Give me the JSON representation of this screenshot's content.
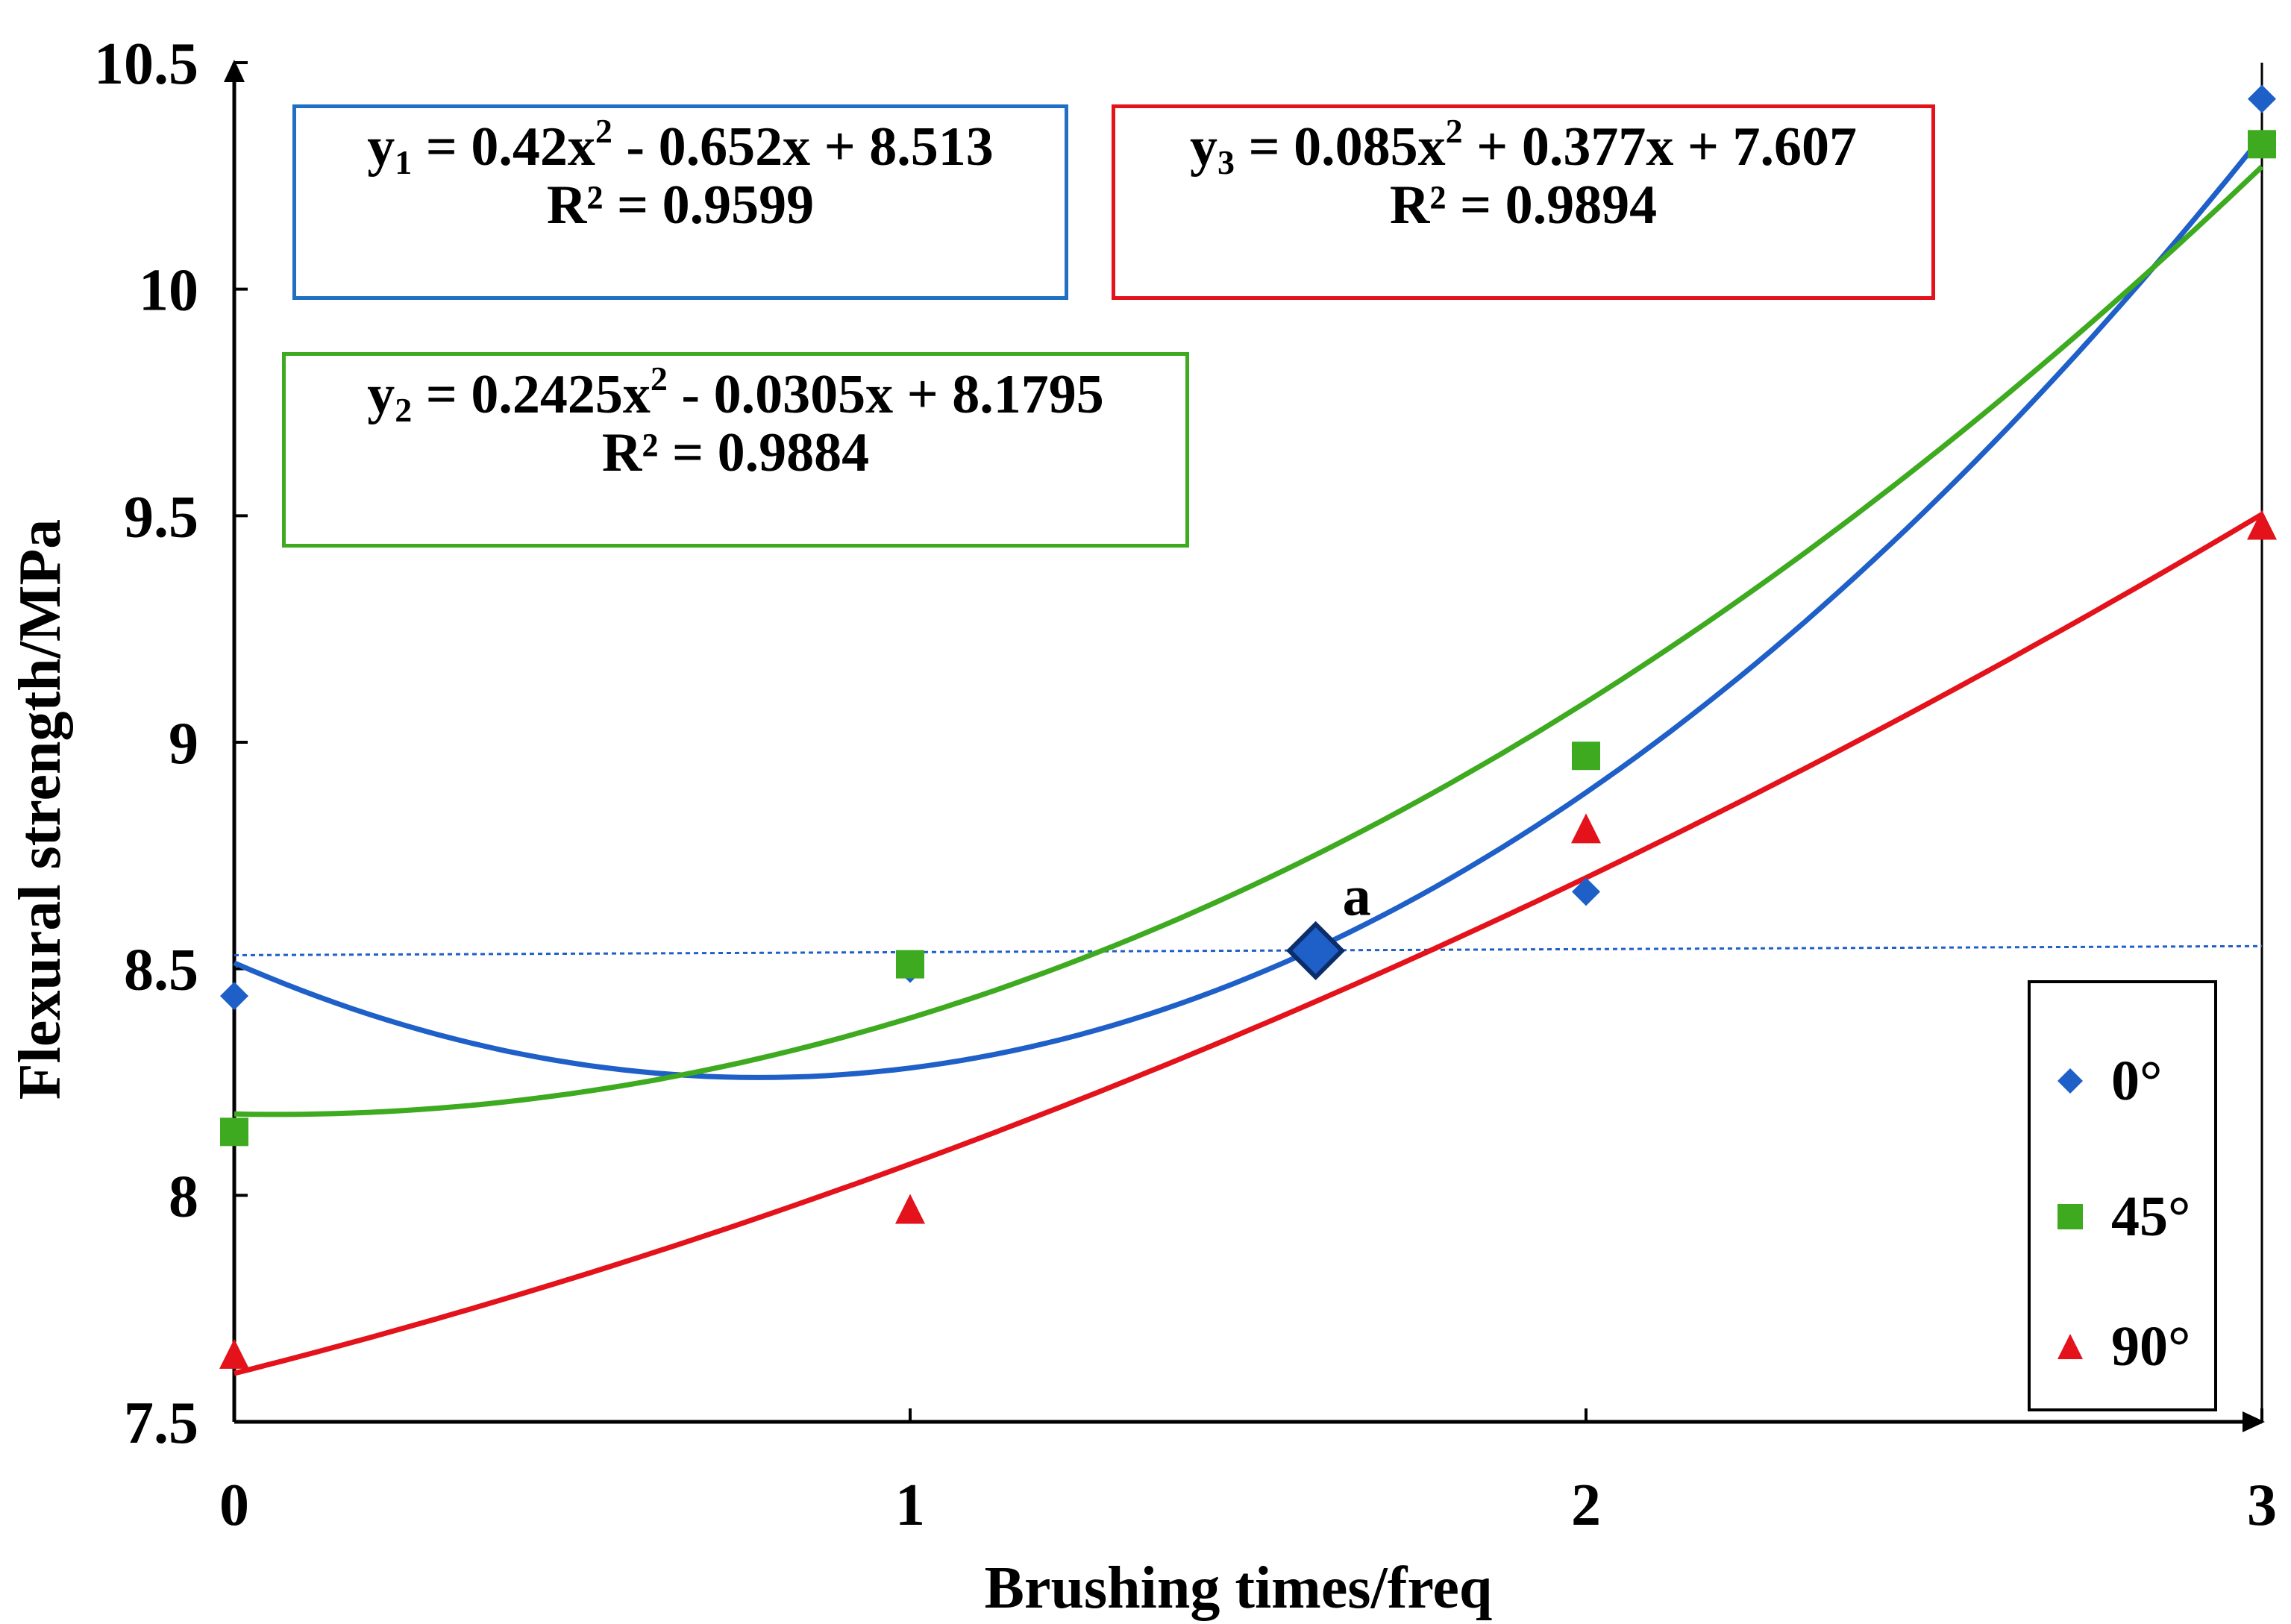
{
  "chart_data": {
    "type": "scatter",
    "xlabel": "Brushing times/freq",
    "ylabel": "Flexural strength/MPa",
    "xlim": [
      0,
      3
    ],
    "ylim": [
      7.5,
      10.5
    ],
    "x_ticks": [
      "0",
      "1",
      "2",
      "3"
    ],
    "y_ticks": [
      "7.5",
      "8",
      "8.5",
      "9",
      "9.5",
      "10",
      "10.5"
    ],
    "series": [
      {
        "name": "0°",
        "color": "#1f5fc8",
        "marker": "diamond",
        "x": [
          0,
          1,
          2,
          3
        ],
        "values": [
          8.44,
          8.5,
          8.67,
          10.42
        ],
        "trend": {
          "a": 0.42,
          "b": -0.652,
          "c": 8.513,
          "equation_prefix": "y",
          "equation_sub": "1",
          "equation_body_a": " = 0.42x",
          "equation_body_b": " - 0.652x + 8.513",
          "r2": "R² = 0.9599"
        }
      },
      {
        "name": "45°",
        "color": "#3daa1f",
        "marker": "square",
        "x": [
          0,
          1,
          2,
          3
        ],
        "values": [
          8.14,
          8.51,
          8.97,
          10.32
        ],
        "trend": {
          "a": 0.2425,
          "b": -0.0305,
          "c": 8.1795,
          "equation_prefix": "y",
          "equation_sub": "2",
          "equation_body_a": " = 0.2425x",
          "equation_body_b": " - 0.0305x + 8.1795",
          "r2": "R² = 0.9884"
        }
      },
      {
        "name": "90°",
        "color": "#e3121b",
        "marker": "triangle",
        "x": [
          0,
          1,
          2,
          3
        ],
        "values": [
          7.65,
          7.97,
          8.81,
          9.48
        ],
        "trend": {
          "a": 0.085,
          "b": 0.377,
          "c": 7.607,
          "equation_prefix": "y",
          "equation_sub": "3",
          "equation_body_a": " = 0.085x",
          "equation_body_b": " + 0.377x + 7.607",
          "r2": "R² = 0.9894"
        }
      }
    ],
    "reference_line": {
      "y_start": 8.53,
      "y_end": 8.55,
      "color": "#1f5fc8",
      "style": "dotted"
    },
    "highlight_point": {
      "x": 1.6,
      "y": 8.54,
      "label": "a"
    },
    "superscript_two": "2",
    "legend_position": "bottom-right"
  }
}
